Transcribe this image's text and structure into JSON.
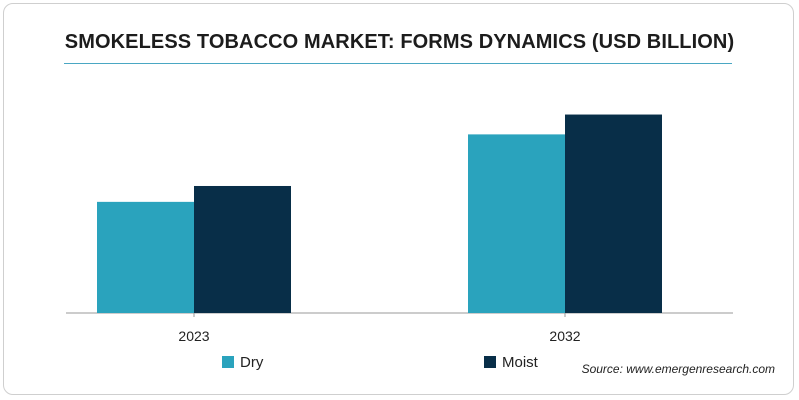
{
  "colors": {
    "Dry": "#2aa3bd",
    "Moist": "#082e48",
    "axis": "#999999",
    "rule": "#4aa7c3"
  },
  "source_text": "Source: www.emergenresearch.com",
  "chart_data": {
    "type": "bar",
    "title": "SMOKELESS TOBACCO MARKET: FORMS DYNAMICS (USD BILLION)",
    "categories": [
      "2023",
      "2032"
    ],
    "series": [
      {
        "name": "Dry",
        "values": [
          5.6,
          9.0
        ]
      },
      {
        "name": "Moist",
        "values": [
          6.4,
          10.0
        ]
      }
    ],
    "xlabel": "",
    "ylabel": "",
    "ylim": [
      0,
      13
    ],
    "grid": false,
    "legend": "bottom"
  }
}
